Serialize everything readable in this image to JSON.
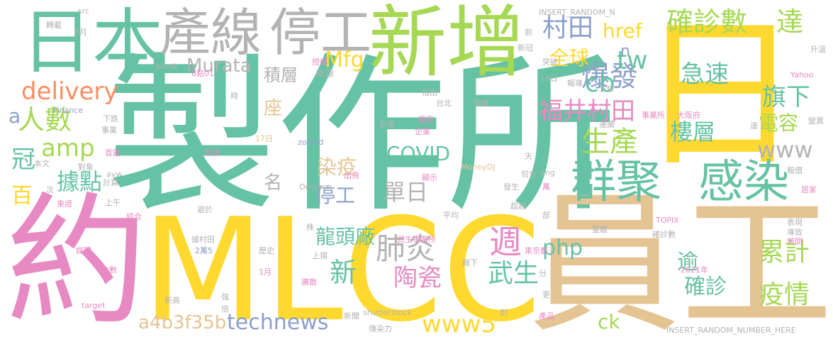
{
  "word_cloud": {
    "words": [
      {
        "text": "製作所",
        "color": "#66c2a5"
      },
      {
        "text": "MLCC",
        "color": "#ffd92f"
      },
      {
        "text": "日",
        "color": "#ffd92f"
      },
      {
        "text": "員工",
        "color": "#e5c494"
      },
      {
        "text": "約",
        "color": "#e78ac3"
      },
      {
        "text": "新增",
        "color": "#a6d854"
      },
      {
        "text": "日本",
        "color": "#66c2a5"
      },
      {
        "text": "產線",
        "color": "#b3b3b3"
      },
      {
        "text": "停工",
        "color": "#b3b3b3"
      },
      {
        "text": "群聚",
        "color": "#66c2a5"
      },
      {
        "text": "感染",
        "color": "#66c2a5"
      },
      {
        "text": "確診數",
        "color": "#a6d854"
      },
      {
        "text": "達",
        "color": "#a6d854"
      },
      {
        "text": "村田",
        "color": "#8da0cb"
      },
      {
        "text": "爆發",
        "color": "#8da0cb"
      },
      {
        "text": "人數",
        "color": "#a6d854"
      },
      {
        "text": "delivery",
        "color": "#fc8d62"
      },
      {
        "text": "amp",
        "color": "#a6d854"
      },
      {
        "text": "福井村田",
        "color": "#e78ac3"
      },
      {
        "text": "technews",
        "color": "#8da0cb"
      },
      {
        "text": "a4b3f35b",
        "color": "#e5c494"
      },
      {
        "text": "www5",
        "color": "#ffd92f"
      },
      {
        "text": "cb",
        "color": "#66c2a5"
      },
      {
        "text": "tw",
        "color": "#66c2a5"
      },
      {
        "text": "生產",
        "color": "#a6d854"
      },
      {
        "text": "www",
        "color": "#b3b3b3"
      },
      {
        "text": "累計",
        "color": "#a6d854"
      },
      {
        "text": "疫情",
        "color": "#a6d854"
      },
      {
        "text": "確診",
        "color": "#66c2a5"
      },
      {
        "text": "php",
        "color": "#66c2a5"
      },
      {
        "text": "急速",
        "color": "#66c2a5"
      },
      {
        "text": "旗下",
        "color": "#66c2a5"
      },
      {
        "text": "樓層",
        "color": "#66c2a5"
      },
      {
        "text": "電容",
        "color": "#a6d854"
      },
      {
        "text": "肺炎",
        "color": "#b3b3b3"
      },
      {
        "text": "週",
        "color": "#e78ac3"
      },
      {
        "text": "武生",
        "color": "#66c2a5"
      },
      {
        "text": "陶瓷",
        "color": "#e78ac3"
      },
      {
        "text": "新",
        "color": "#66c2a5"
      },
      {
        "text": "龍頭廠",
        "color": "#66c2a5"
      },
      {
        "text": "COVID",
        "color": "#66c2a5"
      },
      {
        "text": "Murata",
        "color": "#b3b3b3"
      },
      {
        "text": "Mfg",
        "color": "#ffd92f"
      },
      {
        "text": "全球",
        "color": "#ffd92f"
      },
      {
        "text": "href",
        "color": "#ffd92f"
      },
      {
        "text": "積層",
        "color": "#b3b3b3"
      },
      {
        "text": "據點",
        "color": "#66c2a5"
      },
      {
        "text": "冠",
        "color": "#66c2a5"
      },
      {
        "text": "百",
        "color": "#ffd92f"
      },
      {
        "text": "單日",
        "color": "#b3b3b3"
      },
      {
        "text": "停工",
        "color": "#8da0cb"
      },
      {
        "text": "染疫",
        "color": "#e5c494"
      },
      {
        "text": "名",
        "color": "#b3b3b3"
      },
      {
        "text": "座",
        "color": "#e5c494"
      },
      {
        "text": "ck",
        "color": "#a6d854"
      },
      {
        "text": "逾",
        "color": "#66c2a5"
      },
      {
        "text": "n",
        "color": "#8da0cb"
      },
      {
        "text": "a",
        "color": "#8da0cb"
      },
      {
        "text": "src",
        "color": "#b3b3b3"
      },
      {
        "text": "轉載",
        "color": "#b3b3b3"
      },
      {
        "text": "8月",
        "color": "#b3b3b3"
      },
      {
        "text": "INSERT_RANDOM_N",
        "color": "#b3b3b3"
      },
      {
        "text": "前",
        "color": "#b3b3b3"
      },
      {
        "text": "授權",
        "color": "#e78ac3"
      },
      {
        "text": "_blank",
        "color": "#b3b3b3"
      },
      {
        "text": "8點01",
        "color": "#e78ac3"
      },
      {
        "text": "來源",
        "color": "#b3b3b3"
      },
      {
        "text": "16日",
        "color": "#b3b3b3"
      },
      {
        "text": "新冠",
        "color": "#b3b3b3"
      },
      {
        "text": "突破",
        "color": "#b3b3b3"
      },
      {
        "text": "報導",
        "color": "#b3b3b3"
      },
      {
        "text": "Yahoo",
        "color": "#e78ac3"
      },
      {
        "text": "升溫",
        "color": "#b3b3b3"
      },
      {
        "text": "時",
        "color": "#b3b3b3"
      },
      {
        "text": "工作",
        "color": "#b3b3b3"
      },
      {
        "text": "Finance",
        "color": "#8da0cb"
      },
      {
        "text": "指出",
        "color": "#b3b3b3"
      },
      {
        "text": "台北",
        "color": "#b3b3b3"
      },
      {
        "text": "隔離",
        "color": "#b3b3b3"
      },
      {
        "text": "下跌",
        "color": "#b3b3b3"
      },
      {
        "text": "事業",
        "color": "#b3b3b3"
      },
      {
        "text": "17日",
        "color": "#e5c494"
      },
      {
        "text": "廠房",
        "color": "#e78ac3"
      },
      {
        "text": "企業",
        "color": "#e78ac3"
      },
      {
        "text": "影響",
        "color": "#b3b3b3"
      },
      {
        "text": "事業所",
        "color": "#e78ac3"
      },
      {
        "text": "大阪府",
        "color": "#e78ac3"
      },
      {
        "text": "連續",
        "color": "#b3b3b3"
      },
      {
        "text": "達",
        "color": "#b3b3b3"
      },
      {
        "text": "變異",
        "color": "#b3b3b3"
      },
      {
        "text": "zoneid",
        "color": "#8da0cb"
      },
      {
        "text": "首圖",
        "color": "#e78ac3"
      },
      {
        "text": "合作",
        "color": "#e78ac3"
      },
      {
        "text": "對象",
        "color": "#b3b3b3"
      },
      {
        "text": "本文",
        "color": "#b3b3b3"
      },
      {
        "text": "天",
        "color": "#b3b3b3"
      },
      {
        "text": "出貨",
        "color": "#e78ac3"
      },
      {
        "text": "avw",
        "color": "#b3b3b3"
      },
      {
        "text": "計算",
        "color": "#b3b3b3"
      },
      {
        "text": "顯示",
        "color": "#e78ac3"
      },
      {
        "text": "MoneyDJ",
        "color": "#e5c494"
      },
      {
        "text": "包含",
        "color": "#b3b3b3"
      },
      {
        "text": "img",
        "color": "#b3b3b3"
      },
      {
        "text": "報價",
        "color": "#b3b3b3"
      },
      {
        "text": "次",
        "color": "#b3b3b3"
      },
      {
        "text": "Omicron",
        "color": "#b3b3b3"
      },
      {
        "text": "發生",
        "color": "#b3b3b3"
      },
      {
        "text": "萬",
        "color": "#e78ac3"
      },
      {
        "text": "居家",
        "color": "#e78ac3"
      },
      {
        "text": "東證",
        "color": "#e78ac3"
      },
      {
        "text": "上午",
        "color": "#b3b3b3"
      },
      {
        "text": "避於",
        "color": "#b3b3b3"
      },
      {
        "text": "綜合",
        "color": "#e78ac3"
      },
      {
        "text": "株",
        "color": "#b3b3b3"
      },
      {
        "text": "平均",
        "color": "#b3b3b3"
      },
      {
        "text": "超越",
        "color": "#b3b3b3"
      },
      {
        "text": "部",
        "color": "#b3b3b3"
      },
      {
        "text": "TOPIX",
        "color": "#e78ac3"
      },
      {
        "text": "表現",
        "color": "#b3b3b3"
      },
      {
        "text": "整體",
        "color": "#b3b3b3"
      },
      {
        "text": "據村田",
        "color": "#b3b3b3"
      },
      {
        "text": "武生事業所",
        "color": "#e78ac3"
      },
      {
        "text": "確診數",
        "color": "#b3b3b3"
      },
      {
        "text": "時間",
        "color": "#e78ac3"
      },
      {
        "text": "導致",
        "color": "#b3b3b3"
      },
      {
        "text": "2萬5",
        "color": "#8da0cb"
      },
      {
        "text": "東京都",
        "color": "#e78ac3"
      },
      {
        "text": "媒體",
        "color": "#e78ac3"
      },
      {
        "text": "歷史",
        "color": "#b3b3b3"
      },
      {
        "text": "上揚",
        "color": "#b3b3b3"
      },
      {
        "text": "指數",
        "color": "#e78ac3"
      },
      {
        "text": "1月",
        "color": "#e78ac3"
      },
      {
        "text": "擴散",
        "color": "#e78ac3"
      },
      {
        "text": "轄下",
        "color": "#b3b3b3"
      },
      {
        "text": "分",
        "color": "#b3b3b3"
      },
      {
        "text": "2021年",
        "color": "#e78ac3"
      },
      {
        "text": "新高",
        "color": "#b3b3b3"
      },
      {
        "text": "強",
        "color": "#b3b3b3"
      },
      {
        "text": "倍",
        "color": "#b3b3b3"
      },
      {
        "text": "更",
        "color": "#b3b3b3"
      },
      {
        "text": "target",
        "color": "#e78ac3"
      },
      {
        "text": "新聞",
        "color": "#b3b3b3"
      },
      {
        "text": "shutterstock",
        "color": "#b3b3b3"
      },
      {
        "text": "創",
        "color": "#b3b3b3"
      },
      {
        "text": "產品",
        "color": "#e78ac3"
      },
      {
        "text": "傳染力",
        "color": "#b3b3b3"
      },
      {
        "text": "INSERT_RANDOM_NUMBER_HERE",
        "color": "#b3b3b3"
      }
    ]
  }
}
